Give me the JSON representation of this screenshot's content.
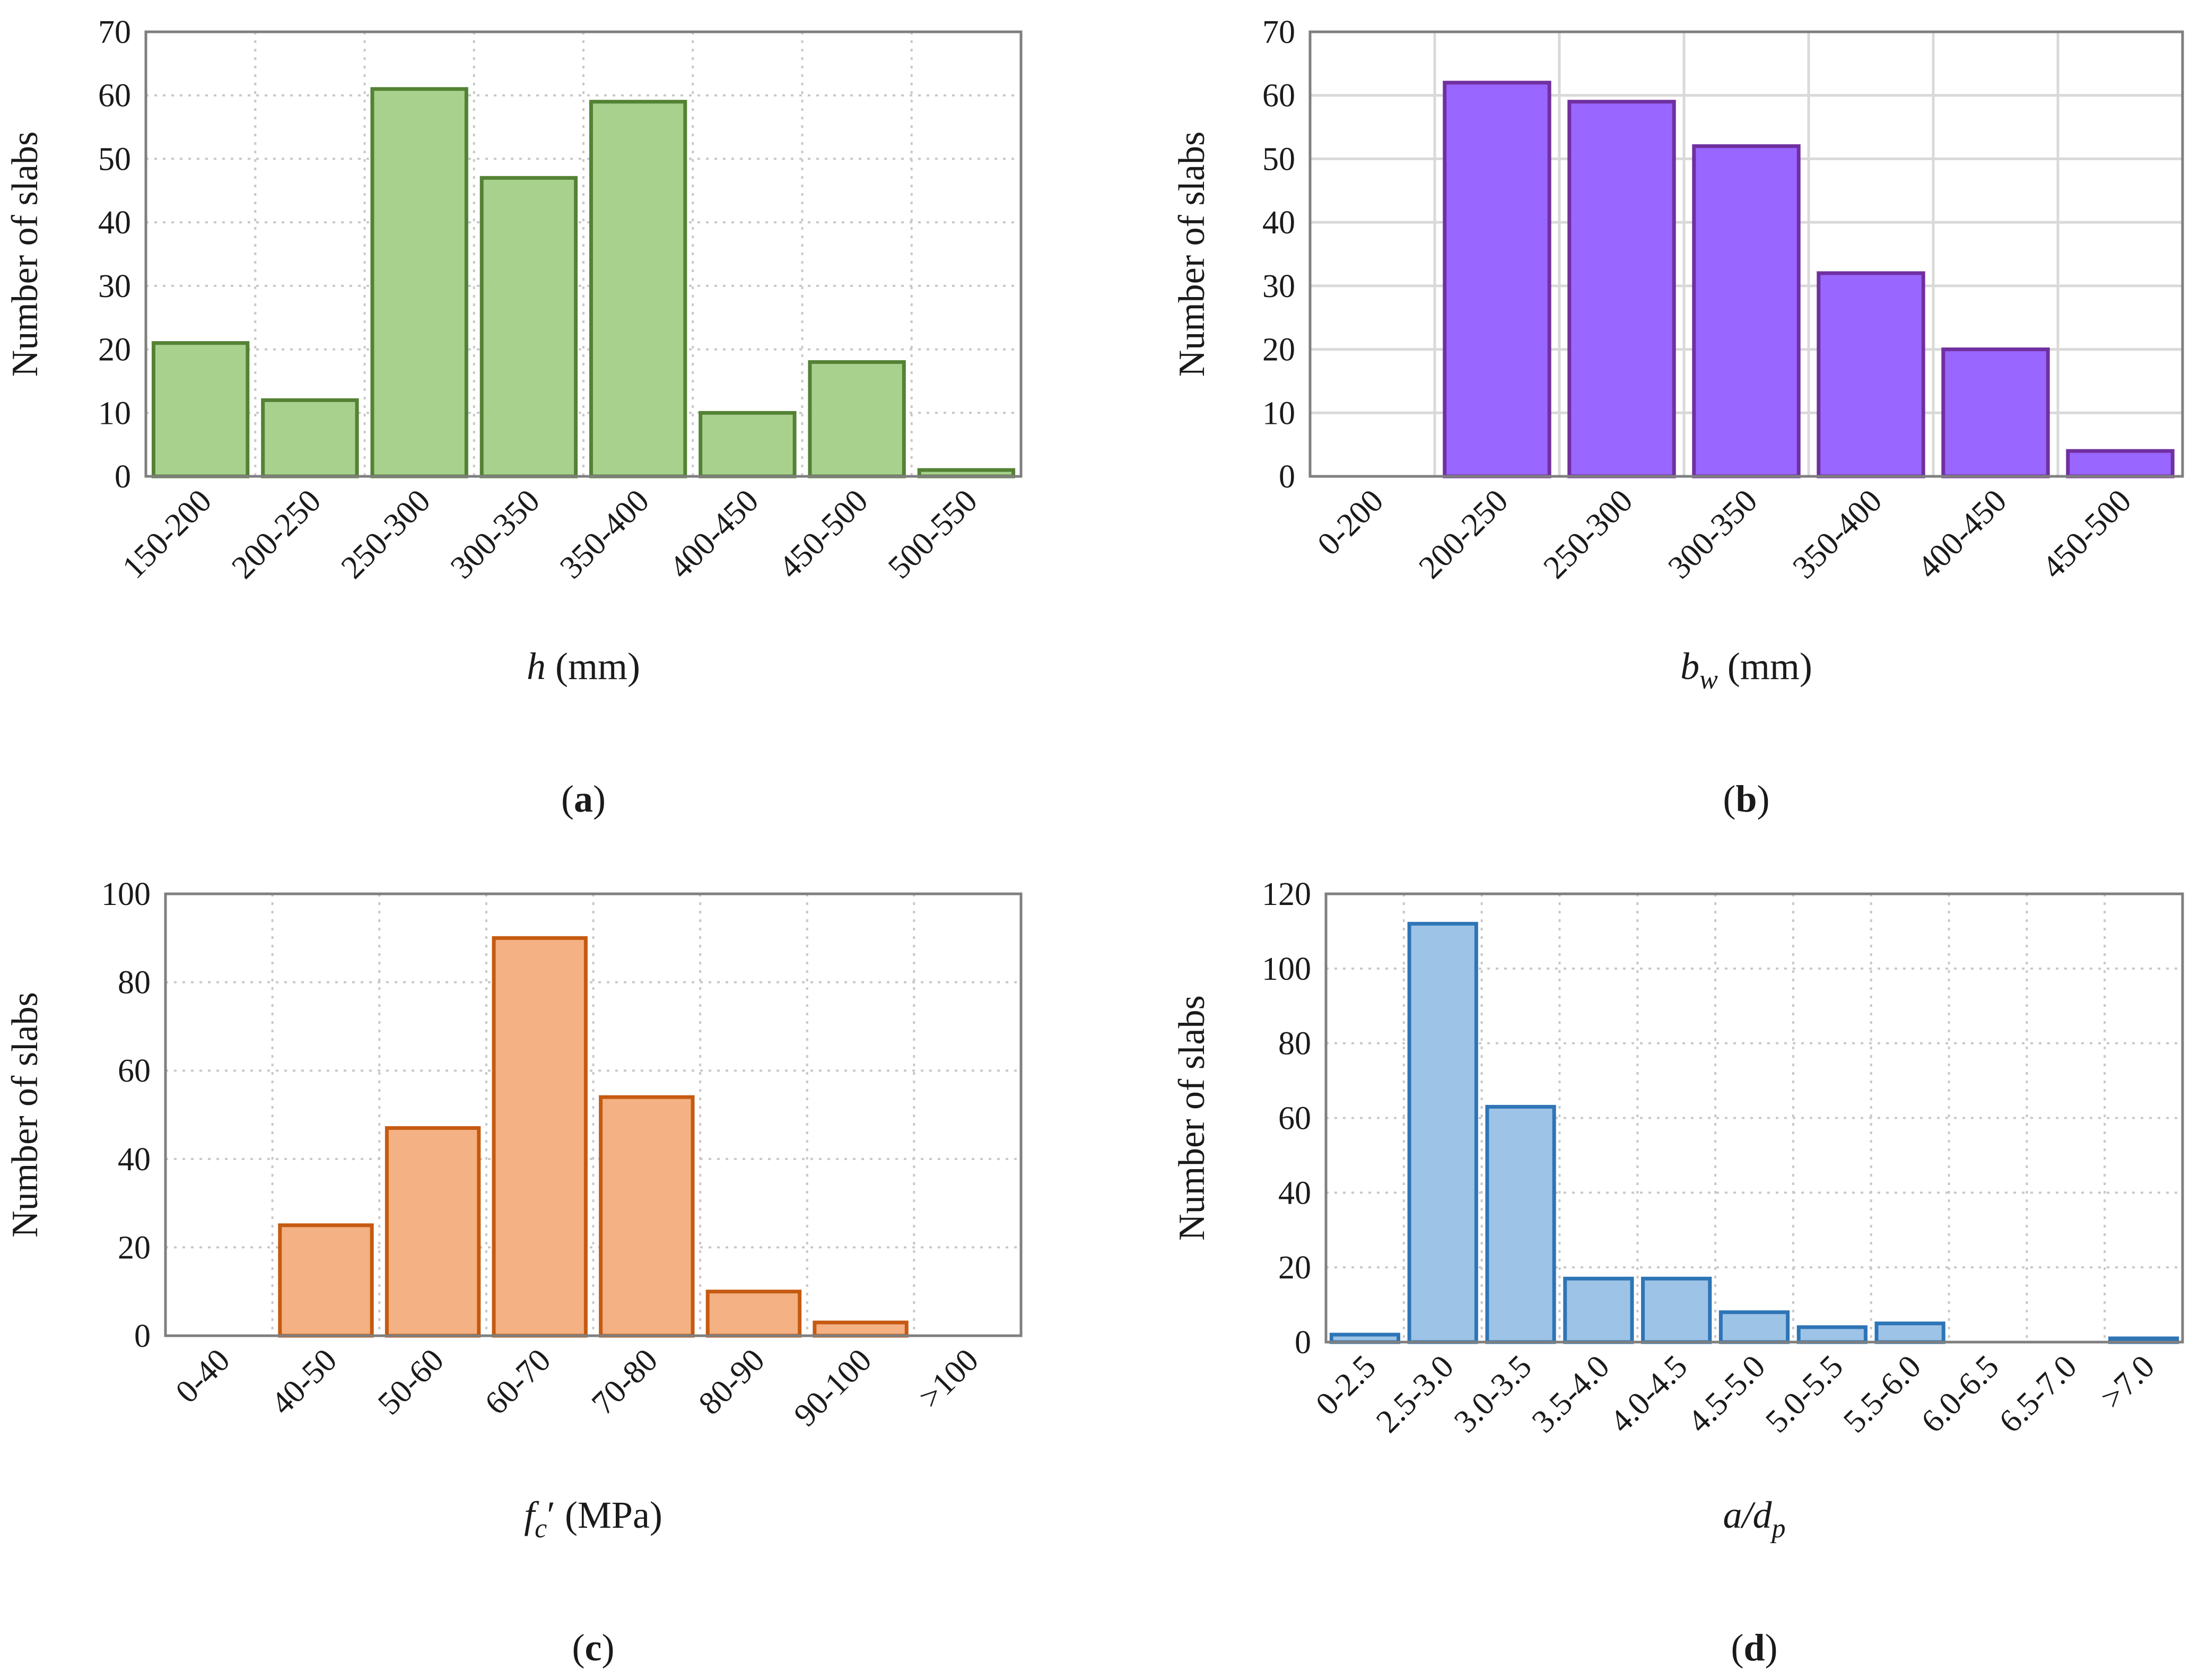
{
  "chart_data": [
    {
      "id": "a",
      "type": "bar",
      "panel_label": "a",
      "categories": [
        "150-200",
        "200-250",
        "250-300",
        "300-350",
        "350-400",
        "400-450",
        "450-500",
        "500-550"
      ],
      "values": [
        21,
        12,
        61,
        47,
        59,
        10,
        18,
        1
      ],
      "ylim": [
        0,
        70
      ],
      "yticks": [
        0,
        10,
        20,
        30,
        40,
        50,
        60,
        70
      ],
      "ylabel": "Number of  slabs",
      "xlabel": {
        "var": "h",
        "sub": "",
        "unit": " (mm)"
      },
      "grid": "dotted",
      "colors": {
        "fill": "#a9d18e",
        "stroke": "#548235"
      }
    },
    {
      "id": "b",
      "type": "bar",
      "panel_label": "b",
      "categories": [
        "0-200",
        "200-250",
        "250-300",
        "300-350",
        "350-400",
        "400-450",
        "450-500"
      ],
      "values": [
        0,
        62,
        59,
        52,
        32,
        20,
        4
      ],
      "ylim": [
        0,
        70
      ],
      "yticks": [
        0,
        10,
        20,
        30,
        40,
        50,
        60,
        70
      ],
      "ylabel": "Number of slabs",
      "xlabel": {
        "var": "b",
        "sub": "w",
        "unit": " (mm)"
      },
      "grid": "solid",
      "colors": {
        "fill": "#9966ff",
        "stroke": "#7030a0"
      }
    },
    {
      "id": "c",
      "type": "bar",
      "panel_label": "c",
      "categories": [
        "0-40",
        "40-50",
        "50-60",
        "60-70",
        "70-80",
        "80-90",
        "90-100",
        ">100"
      ],
      "values": [
        0,
        25,
        47,
        90,
        54,
        10,
        3,
        0
      ],
      "ylim": [
        0,
        100
      ],
      "yticks": [
        0,
        20,
        40,
        60,
        80,
        100
      ],
      "ylabel": "Number of slabs",
      "xlabel": {
        "var": "f",
        "sub": "c",
        "prime": "′",
        "unit": " (MPa)"
      },
      "grid": "dotted",
      "colors": {
        "fill": "#f4b183",
        "stroke": "#c55a11"
      }
    },
    {
      "id": "d",
      "type": "bar",
      "panel_label": "d",
      "categories": [
        "0-2.5",
        "2.5-3.0",
        "3.0-3.5",
        "3.5-4.0",
        "4.0-4.5",
        "4.5-5.0",
        "5.0-5.5",
        "5.5-6.0",
        "6.0-6.5",
        "6.5-7.0",
        ">7.0"
      ],
      "values": [
        2,
        112,
        63,
        17,
        17,
        8,
        4,
        5,
        0,
        0,
        1
      ],
      "ylim": [
        0,
        120
      ],
      "yticks": [
        0,
        20,
        40,
        60,
        80,
        100,
        120
      ],
      "ylabel": "Number of slabs",
      "xlabel": {
        "var": "a/d",
        "sub": "p",
        "unit": ""
      },
      "grid": "dotted",
      "colors": {
        "fill": "#9dc3e6",
        "stroke": "#2e75b6"
      }
    }
  ]
}
